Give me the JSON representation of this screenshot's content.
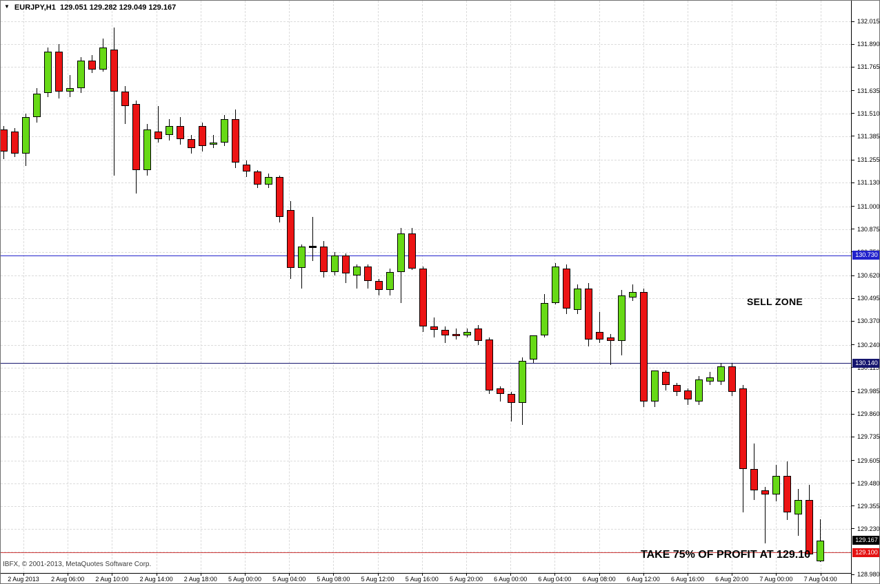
{
  "title_bar": {
    "expander": "▼",
    "symbol_period": "EURJPY,H1",
    "ohlc_quote": "129.051 129.282 129.049 129.167"
  },
  "copyright": "IBFX, © 2001-2013, MetaQuotes Software Corp.",
  "annotations": {
    "sell_zone": "SELL ZONE",
    "take_profit": "TAKE 75% OF PROFIT AT 129.10"
  },
  "colors": {
    "background": "#FFFFFF",
    "bull": "#67D916",
    "bear": "#EC1414",
    "outline": "#000000",
    "grid": "#DBDBDB",
    "resistance_line": "#2222CC",
    "resistance_box": "#2222CC",
    "support_line": "#16166E",
    "support_box": "#16166E",
    "stop_line": "#D03C3C",
    "stop_box": "#E41212",
    "bid_box": "#000000"
  },
  "chart_data": {
    "type": "candlestick",
    "symbol": "EURJPY",
    "timeframe": "H1",
    "title": "EURJPY,H1 129.051 129.282 129.049 129.167",
    "current_bar": {
      "open": 129.051,
      "high": 129.282,
      "low": 129.049,
      "close": 129.167
    },
    "y_axis": {
      "top_price": 132.015,
      "bottom_price": 128.98,
      "tick_step": 0.125,
      "labels": [
        "132.015",
        "131.890",
        "131.765",
        "131.635",
        "131.510",
        "131.385",
        "131.255",
        "131.130",
        "131.000",
        "130.875",
        "130.750",
        "130.620",
        "130.495",
        "130.370",
        "130.240",
        "130.115",
        "129.985",
        "129.860",
        "129.735",
        "129.605",
        "129.480",
        "129.355",
        "129.230",
        "128.980"
      ],
      "grid_extra_price": 129.105
    },
    "x_axis": {
      "labels": [
        "2 Aug 2013",
        "2 Aug 06:00",
        "2 Aug 10:00",
        "2 Aug 14:00",
        "2 Aug 18:00",
        "5 Aug 00:00",
        "5 Aug 04:00",
        "5 Aug 08:00",
        "5 Aug 12:00",
        "5 Aug 16:00",
        "5 Aug 20:00",
        "6 Aug 00:00",
        "6 Aug 04:00",
        "6 Aug 08:00",
        "6 Aug 12:00",
        "6 Aug 16:00",
        "6 Aug 20:00",
        "7 Aug 00:00",
        "7 Aug 04:00"
      ]
    },
    "hlines": [
      {
        "price": 130.73,
        "label": "130.730",
        "role": "resistance",
        "line_color_key": "resistance_line",
        "box_color_key": "resistance_box"
      },
      {
        "price": 130.14,
        "label": "130.140",
        "role": "support",
        "line_color_key": "support_line",
        "box_color_key": "support_box"
      },
      {
        "price": 129.1,
        "label": "129.100",
        "role": "take-profit-level",
        "line_color_key": "stop_line",
        "box_color_key": "stop_box"
      }
    ],
    "bid_marker": {
      "price": 129.167,
      "label": "129.167",
      "box_color_key": "bid_box"
    },
    "candles_ohlc": [
      [
        131.42,
        131.44,
        131.26,
        131.3
      ],
      [
        131.41,
        131.43,
        131.27,
        131.29
      ],
      [
        131.29,
        131.51,
        131.22,
        131.49
      ],
      [
        131.49,
        131.65,
        131.46,
        131.62
      ],
      [
        131.62,
        131.87,
        131.6,
        131.85
      ],
      [
        131.85,
        131.89,
        131.59,
        131.63
      ],
      [
        131.63,
        131.72,
        131.6,
        131.65
      ],
      [
        131.65,
        131.82,
        131.62,
        131.8
      ],
      [
        131.8,
        131.83,
        131.73,
        131.75
      ],
      [
        131.75,
        131.92,
        131.74,
        131.87
      ],
      [
        131.86,
        131.98,
        131.17,
        131.63
      ],
      [
        131.63,
        131.66,
        131.45,
        131.55
      ],
      [
        131.56,
        131.58,
        131.07,
        131.2
      ],
      [
        131.2,
        131.45,
        131.17,
        131.42
      ],
      [
        131.41,
        131.55,
        131.35,
        131.37
      ],
      [
        131.39,
        131.48,
        131.36,
        131.44
      ],
      [
        131.44,
        131.49,
        131.34,
        131.37
      ],
      [
        131.37,
        131.39,
        131.29,
        131.32
      ],
      [
        131.44,
        131.46,
        131.3,
        131.33
      ],
      [
        131.34,
        131.39,
        131.32,
        131.35
      ],
      [
        131.35,
        131.5,
        131.33,
        131.48
      ],
      [
        131.48,
        131.53,
        131.21,
        131.24
      ],
      [
        131.23,
        131.25,
        131.16,
        131.19
      ],
      [
        131.19,
        131.2,
        131.1,
        131.12
      ],
      [
        131.12,
        131.18,
        131.1,
        131.16
      ],
      [
        131.16,
        131.17,
        130.91,
        130.94
      ],
      [
        130.98,
        131.03,
        130.6,
        130.66
      ],
      [
        130.66,
        130.79,
        130.55,
        130.78
      ],
      [
        130.78,
        130.94,
        130.7,
        130.78
      ],
      [
        130.78,
        130.81,
        130.61,
        130.64
      ],
      [
        130.64,
        130.75,
        130.62,
        130.73
      ],
      [
        130.73,
        130.74,
        130.58,
        130.63
      ],
      [
        130.62,
        130.68,
        130.55,
        130.67
      ],
      [
        130.67,
        130.68,
        130.55,
        130.59
      ],
      [
        130.59,
        130.6,
        130.51,
        130.54
      ],
      [
        130.54,
        130.66,
        130.51,
        130.64
      ],
      [
        130.64,
        130.88,
        130.47,
        130.85
      ],
      [
        130.85,
        130.88,
        130.65,
        130.66
      ],
      [
        130.66,
        130.67,
        130.31,
        130.34
      ],
      [
        130.34,
        130.39,
        130.28,
        130.32
      ],
      [
        130.32,
        130.34,
        130.25,
        130.29
      ],
      [
        130.3,
        130.33,
        130.27,
        130.29
      ],
      [
        130.29,
        130.33,
        130.28,
        130.31
      ],
      [
        130.33,
        130.35,
        130.24,
        130.26
      ],
      [
        130.27,
        130.28,
        129.97,
        129.99
      ],
      [
        130.0,
        130.01,
        129.93,
        129.97
      ],
      [
        129.97,
        129.98,
        129.82,
        129.92
      ],
      [
        129.92,
        130.17,
        129.8,
        130.15
      ],
      [
        130.16,
        130.29,
        130.14,
        130.29
      ],
      [
        130.29,
        130.52,
        130.28,
        130.47
      ],
      [
        130.47,
        130.69,
        130.46,
        130.67
      ],
      [
        130.66,
        130.68,
        130.41,
        130.44
      ],
      [
        130.43,
        130.57,
        130.41,
        130.55
      ],
      [
        130.55,
        130.58,
        130.23,
        130.27
      ],
      [
        130.31,
        130.42,
        130.25,
        130.27
      ],
      [
        130.28,
        130.3,
        130.13,
        130.26
      ],
      [
        130.26,
        130.54,
        130.18,
        130.51
      ],
      [
        130.5,
        130.57,
        130.48,
        130.53
      ],
      [
        130.53,
        130.55,
        129.9,
        129.93
      ],
      [
        129.93,
        130.1,
        129.9,
        130.1
      ],
      [
        130.09,
        130.1,
        129.99,
        130.02
      ],
      [
        130.02,
        130.03,
        129.96,
        129.98
      ],
      [
        129.99,
        130.0,
        129.91,
        129.94
      ],
      [
        129.93,
        130.07,
        129.91,
        130.05
      ],
      [
        130.04,
        130.09,
        130.02,
        130.06
      ],
      [
        130.04,
        130.14,
        130.02,
        130.12
      ],
      [
        130.12,
        130.14,
        129.96,
        129.98
      ],
      [
        130.0,
        130.02,
        129.32,
        129.56
      ],
      [
        129.56,
        129.7,
        129.39,
        129.44
      ],
      [
        129.44,
        129.46,
        129.15,
        129.42
      ],
      [
        129.42,
        129.58,
        129.38,
        129.52
      ],
      [
        129.52,
        129.6,
        129.28,
        129.32
      ],
      [
        129.31,
        129.45,
        129.19,
        129.39
      ],
      [
        129.39,
        129.47,
        129.08,
        129.09
      ],
      [
        129.051,
        129.282,
        129.049,
        129.167
      ]
    ]
  }
}
